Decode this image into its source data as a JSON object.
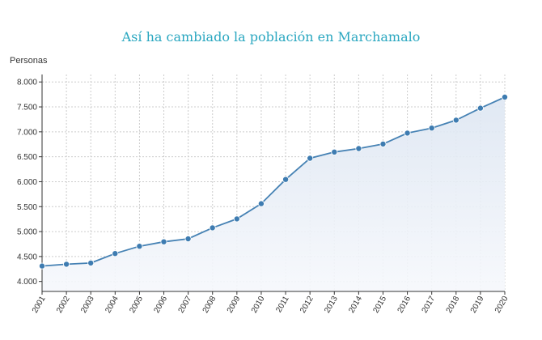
{
  "chart_data": {
    "type": "area",
    "title": "Así ha cambiado la población en Marchamalo",
    "ylabel": "Personas",
    "xlabel": "",
    "x": [
      "2001",
      "2002",
      "2003",
      "2004",
      "2005",
      "2006",
      "2007",
      "2008",
      "2009",
      "2010",
      "2011",
      "2012",
      "2013",
      "2014",
      "2015",
      "2016",
      "2017",
      "2018",
      "2019",
      "2020"
    ],
    "values": [
      4310,
      4345,
      4370,
      4560,
      4705,
      4795,
      4855,
      5075,
      5255,
      5560,
      6045,
      6470,
      6595,
      6665,
      6755,
      6975,
      7075,
      7235,
      7475,
      7695
    ],
    "ylim": [
      3800,
      8150
    ],
    "yticks": [
      4000,
      4500,
      5000,
      5500,
      6000,
      6500,
      7000,
      7500,
      8000
    ],
    "ytick_labels": [
      "4.000",
      "4.500",
      "5.000",
      "5.500",
      "6.000",
      "6.500",
      "7.000",
      "7.500",
      "8.000"
    ],
    "grid": true,
    "colors": {
      "line": "#4682b4",
      "point": "#3e7cb1",
      "fill_top": "#dde6f2",
      "title": "#2aa7c0",
      "grid": "#cccccc"
    }
  }
}
